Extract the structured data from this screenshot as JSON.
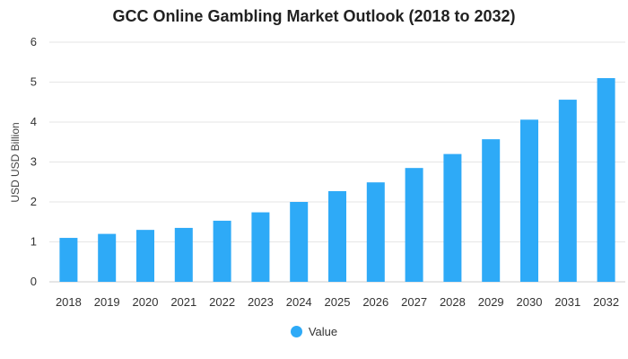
{
  "colors": {
    "bar": "#2eaaf7",
    "grid": "#e6e6e6",
    "axis": "#cccccc"
  },
  "chart_data": {
    "type": "bar",
    "title": "GCC Online Gambling Market Outlook (2018 to 2032)",
    "xlabel": "",
    "ylabel": "USD USD Billion",
    "categories": [
      "2018",
      "2019",
      "2020",
      "2021",
      "2022",
      "2023",
      "2024",
      "2025",
      "2026",
      "2027",
      "2028",
      "2029",
      "2030",
      "2031",
      "2032"
    ],
    "series": [
      {
        "name": "Value",
        "values": [
          1.1,
          1.2,
          1.3,
          1.35,
          1.53,
          1.74,
          2.0,
          2.27,
          2.49,
          2.85,
          3.2,
          3.57,
          4.06,
          4.56,
          5.1
        ]
      }
    ],
    "ylim": [
      0,
      6
    ],
    "yticks": [
      "0",
      "1",
      "2",
      "3",
      "4",
      "5",
      "6"
    ],
    "grid": true,
    "legend_position": "bottom-center"
  }
}
